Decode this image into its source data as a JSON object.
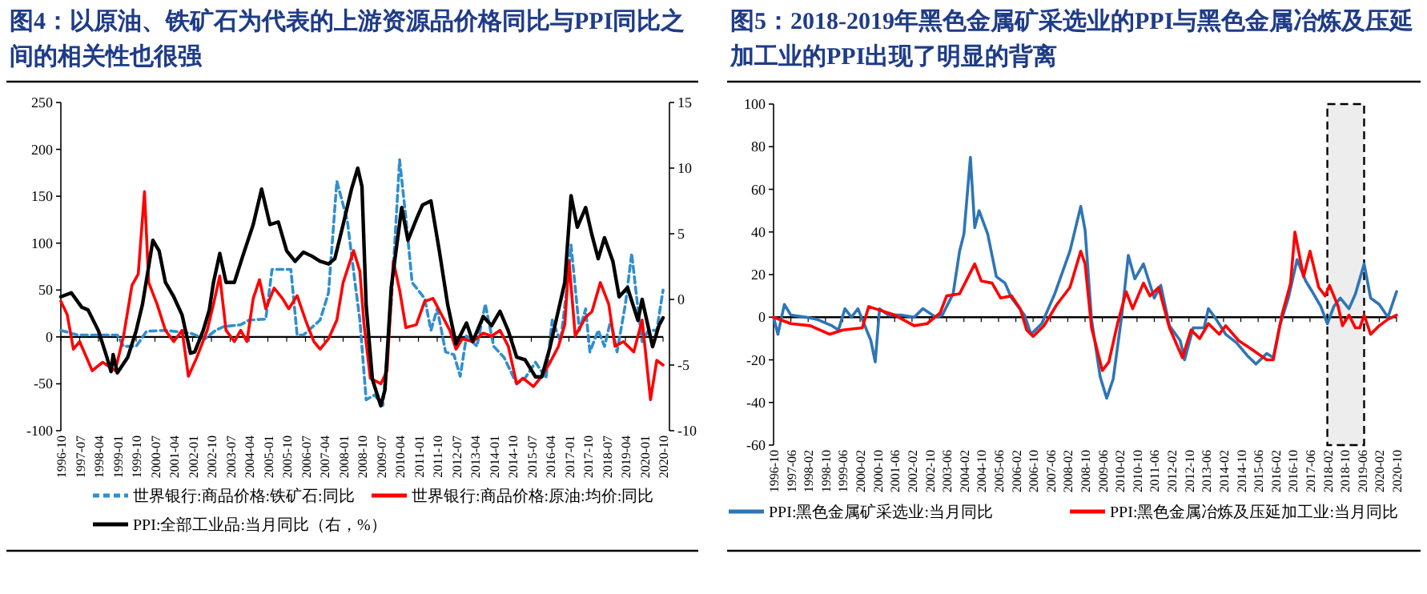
{
  "chart_data": [
    {
      "type": "line",
      "title": "图4：以原油、铁矿石为代表的上游资源品价格同比与PPI同比之间的相关性也很强",
      "xlim": [
        "1996-10",
        "2020-10"
      ],
      "xticks": [
        "1996-10",
        "1997-07",
        "1998-04",
        "1999-01",
        "1999-10",
        "2000-07",
        "2001-04",
        "2002-01",
        "2002-10",
        "2003-07",
        "2004-04",
        "2005-01",
        "2005-10",
        "2006-07",
        "2007-04",
        "2008-01",
        "2008-10",
        "2009-07",
        "2010-04",
        "2011-01",
        "2011-10",
        "2012-07",
        "2013-04",
        "2014-01",
        "2014-10",
        "2015-07",
        "2016-04",
        "2017-01",
        "2017-10",
        "2018-07",
        "2019-04",
        "2020-01",
        "2020-10"
      ],
      "ylim": [
        -100,
        250
      ],
      "yticks": [
        -100,
        -50,
        0,
        50,
        100,
        150,
        200,
        250
      ],
      "y2lim": [
        -10,
        15
      ],
      "y2ticks": [
        -10,
        -5,
        0,
        5,
        10,
        15
      ],
      "legend": "bottom",
      "series": [
        {
          "name": "世界银行:商品价格:铁矿石:同比",
          "color": "#2f8fd0",
          "line_style": "dashed",
          "x": [
            "1996-10",
            "1997-06",
            "1998-06",
            "1999-01",
            "1999-04",
            "1999-10",
            "2000-03",
            "2000-12",
            "2001-12",
            "2002-07",
            "2002-12",
            "2003-04",
            "2003-12",
            "2004-04",
            "2004-12",
            "2005-03",
            "2005-12",
            "2006-03",
            "2006-06",
            "2007-02",
            "2007-06",
            "2007-10",
            "2008-03",
            "2008-06",
            "2008-09",
            "2008-12",
            "2009-04",
            "2009-08",
            "2009-12",
            "2010-04",
            "2010-07",
            "2010-10",
            "2011-04",
            "2011-07",
            "2011-10",
            "2012-02",
            "2012-06",
            "2012-09",
            "2012-12",
            "2013-05",
            "2013-09",
            "2014-01",
            "2014-06",
            "2014-12",
            "2015-04",
            "2015-09",
            "2016-02",
            "2016-05",
            "2016-09",
            "2016-12",
            "2017-02",
            "2017-06",
            "2017-09",
            "2017-11",
            "2018-03",
            "2018-06",
            "2018-09",
            "2018-12",
            "2019-04",
            "2019-07",
            "2019-10",
            "2019-12",
            "2020-03",
            "2020-07",
            "2020-10"
          ],
          "values": [
            7,
            2,
            2,
            2,
            -10,
            -10,
            6,
            7,
            4,
            -2,
            7,
            11,
            13,
            18,
            19,
            72,
            72,
            2,
            2,
            18,
            47,
            166,
            124,
            70,
            18,
            -67,
            -62,
            -73,
            35,
            189,
            127,
            58,
            41,
            7,
            30,
            -16,
            -19,
            -42,
            1,
            -10,
            35,
            -10,
            -22,
            -50,
            -44,
            -27,
            -44,
            18,
            -5,
            52,
            98,
            7,
            30,
            -16,
            7,
            -10,
            18,
            -16,
            35,
            89,
            30,
            -5,
            7,
            7,
            50
          ]
        },
        {
          "name": "世界银行:商品价格:原油:均价:同比",
          "color": "#ff0000",
          "line_style": "solid",
          "x": [
            "1996-10",
            "1997-01",
            "1997-04",
            "1997-07",
            "1998-01",
            "1998-06",
            "1998-12",
            "1999-04",
            "1999-08",
            "1999-11",
            "2000-02",
            "2000-04",
            "2000-08",
            "2000-12",
            "2001-04",
            "2001-08",
            "2001-11",
            "2002-03",
            "2002-08",
            "2002-11",
            "2003-02",
            "2003-05",
            "2003-09",
            "2003-12",
            "2004-03",
            "2004-06",
            "2004-09",
            "2004-12",
            "2005-04",
            "2005-08",
            "2005-11",
            "2006-03",
            "2006-07",
            "2006-11",
            "2007-02",
            "2007-06",
            "2007-10",
            "2008-01",
            "2008-06",
            "2008-09",
            "2008-11",
            "2009-02",
            "2009-07",
            "2009-10",
            "2010-01",
            "2010-04",
            "2010-07",
            "2010-12",
            "2011-04",
            "2011-08",
            "2011-12",
            "2012-04",
            "2012-07",
            "2012-10",
            "2013-03",
            "2013-08",
            "2013-12",
            "2014-04",
            "2014-08",
            "2014-12",
            "2015-03",
            "2015-08",
            "2015-12",
            "2016-04",
            "2016-08",
            "2016-11",
            "2017-01",
            "2017-04",
            "2017-09",
            "2017-12",
            "2018-04",
            "2018-08",
            "2018-11",
            "2019-03",
            "2019-08",
            "2019-12",
            "2020-04",
            "2020-07",
            "2020-10"
          ],
          "values": [
            38,
            24,
            -13,
            -5,
            -36,
            -27,
            -36,
            1,
            55,
            67,
            155,
            58,
            35,
            7,
            -5,
            7,
            -42,
            -22,
            7,
            35,
            65,
            7,
            -5,
            7,
            -5,
            41,
            61,
            30,
            52,
            41,
            30,
            44,
            18,
            -5,
            -13,
            -2,
            18,
            58,
            92,
            70,
            13,
            -44,
            -50,
            -36,
            81,
            50,
            10,
            13,
            38,
            41,
            24,
            7,
            -13,
            -2,
            -5,
            4,
            1,
            7,
            -10,
            -50,
            -44,
            -53,
            -42,
            -27,
            -10,
            13,
            81,
            1,
            21,
            27,
            58,
            35,
            -10,
            -5,
            -16,
            18,
            -67,
            -25,
            -30
          ]
        },
        {
          "name": "PPI:全部工业品:当月同比（右，%）",
          "color": "#000000",
          "line_style": "solid",
          "axis": "y2",
          "x": [
            "1996-10",
            "1997-03",
            "1997-08",
            "1997-11",
            "1998-04",
            "1998-08",
            "1998-10",
            "1998-11",
            "1999-01",
            "1999-06",
            "1999-10",
            "2000-01",
            "2000-04",
            "2000-06",
            "2000-09",
            "2000-12",
            "2001-04",
            "2001-08",
            "2001-12",
            "2002-02",
            "2002-06",
            "2002-09",
            "2002-11",
            "2003-02",
            "2003-05",
            "2003-09",
            "2004-01",
            "2004-06",
            "2004-10",
            "2005-02",
            "2005-06",
            "2005-10",
            "2006-02",
            "2006-06",
            "2006-10",
            "2007-02",
            "2007-06",
            "2007-09",
            "2008-01",
            "2008-05",
            "2008-08",
            "2008-10",
            "2008-12",
            "2009-03",
            "2009-07",
            "2009-09",
            "2009-12",
            "2010-05",
            "2010-08",
            "2010-12",
            "2011-03",
            "2011-07",
            "2011-11",
            "2012-03",
            "2012-07",
            "2012-12",
            "2013-03",
            "2013-08",
            "2013-12",
            "2014-04",
            "2014-08",
            "2014-12",
            "2015-04",
            "2015-09",
            "2015-12",
            "2016-04",
            "2016-08",
            "2016-11",
            "2017-02",
            "2017-05",
            "2017-09",
            "2017-12",
            "2018-03",
            "2018-06",
            "2018-10",
            "2019-01",
            "2019-05",
            "2019-10",
            "2019-12",
            "2020-05",
            "2020-08",
            "2020-10"
          ],
          "values": [
            0.2,
            0.5,
            -0.6,
            -0.8,
            -2.4,
            -4.4,
            -5.5,
            -4.2,
            -5.6,
            -4.4,
            -2.4,
            -0.4,
            2.5,
            4.5,
            3.7,
            1.3,
            0.2,
            -1.2,
            -4.1,
            -4.0,
            -2.4,
            -0.8,
            1.3,
            3.5,
            1.3,
            1.3,
            3.3,
            5.7,
            8.4,
            5.7,
            5.9,
            3.7,
            2.9,
            3.6,
            3.3,
            2.9,
            2.7,
            3.1,
            5.7,
            8.4,
            10.0,
            8.6,
            -0.4,
            -6.1,
            -8.1,
            -6.9,
            0.9,
            7.0,
            4.5,
            6.1,
            7.2,
            7.5,
            3.7,
            -0.4,
            -3.4,
            -1.8,
            -3.2,
            -1.3,
            -2.0,
            -0.9,
            -2.4,
            -4.4,
            -4.6,
            -5.9,
            -5.9,
            -3.6,
            -0.8,
            1.3,
            7.9,
            5.5,
            7.0,
            4.9,
            3.1,
            4.7,
            2.9,
            0.2,
            0.9,
            -1.6,
            0.0,
            -3.6,
            -2.0,
            -1.4
          ]
        }
      ]
    },
    {
      "type": "line",
      "title": "图5：2018-2019年黑色金属矿采选业的PPI与黑色金属冶炼及压延加工业的PPI出现了明显的背离",
      "xlim": [
        "1996-10",
        "2020-10"
      ],
      "xticks": [
        "1996-10",
        "1997-06",
        "1998-02",
        "1998-10",
        "1999-06",
        "2000-02",
        "2000-10",
        "2001-06",
        "2002-02",
        "2002-10",
        "2003-06",
        "2004-02",
        "2004-10",
        "2005-06",
        "2006-02",
        "2006-10",
        "2007-06",
        "2008-02",
        "2008-10",
        "2009-06",
        "2010-02",
        "2010-10",
        "2011-06",
        "2012-02",
        "2012-10",
        "2013-06",
        "2014-02",
        "2014-10",
        "2015-06",
        "2016-02",
        "2016-10",
        "2017-06",
        "2018-02",
        "2018-10",
        "2019-06",
        "2020-02",
        "2020-10"
      ],
      "ylim": [
        -60,
        100
      ],
      "yticks": [
        -60,
        -40,
        -20,
        0,
        20,
        40,
        60,
        80,
        100
      ],
      "legend": "bottom",
      "bands": [
        {
          "axis": "x",
          "from": "2018-02",
          "to": "2019-07",
          "color": "#000000"
        }
      ],
      "series": [
        {
          "name": "PPI:黑色金属矿采选业:当月同比",
          "color": "#2e75b6",
          "x": [
            "1996-10",
            "1996-12",
            "1997-03",
            "1997-06",
            "1998-01",
            "1998-06",
            "1999-01",
            "1999-04",
            "1999-07",
            "1999-10",
            "2000-01",
            "2000-03",
            "2000-07",
            "2000-09",
            "2000-11",
            "2001-03",
            "2001-09",
            "2002-03",
            "2002-07",
            "2003-01",
            "2003-04",
            "2003-09",
            "2003-12",
            "2004-02",
            "2004-05",
            "2004-07",
            "2004-09",
            "2005-01",
            "2005-05",
            "2005-09",
            "2005-12",
            "2006-06",
            "2006-09",
            "2007-02",
            "2007-08",
            "2008-03",
            "2008-08",
            "2008-10",
            "2009-01",
            "2009-05",
            "2009-08",
            "2009-11",
            "2010-03",
            "2010-06",
            "2010-09",
            "2011-01",
            "2011-06",
            "2011-09",
            "2012-01",
            "2012-06",
            "2012-08",
            "2012-12",
            "2013-05",
            "2013-07",
            "2013-10",
            "2014-03",
            "2014-08",
            "2015-01",
            "2015-05",
            "2015-10",
            "2016-01",
            "2016-04",
            "2016-08",
            "2016-12",
            "2017-04",
            "2017-07",
            "2017-11",
            "2018-02",
            "2018-05",
            "2018-08",
            "2018-12",
            "2019-03",
            "2019-07",
            "2019-10",
            "2020-02",
            "2020-06",
            "2020-10"
          ],
          "values": [
            0,
            -8,
            6,
            1,
            0,
            -1,
            -4,
            -6,
            4,
            0,
            4,
            -1,
            -11,
            -21,
            4,
            1,
            1,
            0,
            4,
            0,
            1,
            11,
            31,
            39,
            75,
            42,
            50,
            39,
            19,
            16,
            9,
            1,
            -8,
            -3,
            11,
            31,
            52,
            41,
            -1,
            -28,
            -38,
            -29,
            1,
            29,
            18,
            25,
            9,
            15,
            -4,
            -11,
            -20,
            -5,
            -5,
            4,
            0,
            -8,
            -12,
            -18,
            -22,
            -17,
            -19,
            -4,
            9,
            27,
            17,
            12,
            5,
            -3,
            5,
            9,
            4,
            11,
            25,
            9,
            6,
            0,
            12
          ]
        },
        {
          "name": "PPI:黑色金属冶炼及压延加工业:当月同比",
          "color": "#ff0000",
          "x": [
            "1996-10",
            "1997-06",
            "1998-03",
            "1998-12",
            "1999-06",
            "2000-03",
            "2000-06",
            "2000-09",
            "2001-06",
            "2002-03",
            "2002-09",
            "2003-03",
            "2003-06",
            "2003-12",
            "2004-04",
            "2004-07",
            "2004-10",
            "2005-03",
            "2005-07",
            "2005-12",
            "2006-04",
            "2006-07",
            "2006-10",
            "2007-03",
            "2007-09",
            "2008-03",
            "2008-08",
            "2008-10",
            "2009-01",
            "2009-06",
            "2009-09",
            "2010-01",
            "2010-05",
            "2010-08",
            "2011-01",
            "2011-04",
            "2011-08",
            "2012-01",
            "2012-07",
            "2012-11",
            "2013-03",
            "2013-07",
            "2013-12",
            "2014-03",
            "2014-09",
            "2015-03",
            "2015-10",
            "2016-01",
            "2016-05",
            "2016-09",
            "2016-11",
            "2017-03",
            "2017-06",
            "2017-10",
            "2018-01",
            "2018-03",
            "2018-07",
            "2018-09",
            "2018-12",
            "2019-03",
            "2019-05",
            "2019-07",
            "2019-10",
            "2020-02",
            "2020-06",
            "2020-10"
          ],
          "values": [
            0,
            -3,
            -4,
            -8,
            -6,
            -5,
            5,
            4,
            1,
            -4,
            -3,
            2,
            10,
            11,
            19,
            25,
            17,
            16,
            9,
            10,
            4,
            -6,
            -9,
            -4,
            6,
            14,
            31,
            25,
            -5,
            -25,
            -21,
            -3,
            12,
            4,
            16,
            10,
            14,
            -5,
            -19,
            -6,
            -10,
            -3,
            -8,
            -4,
            -11,
            -15,
            -20,
            -20,
            1,
            16,
            40,
            19,
            31,
            14,
            10,
            15,
            5,
            -4,
            1,
            -5,
            -5,
            1,
            -8,
            -4,
            -1,
            1
          ]
        }
      ]
    }
  ]
}
